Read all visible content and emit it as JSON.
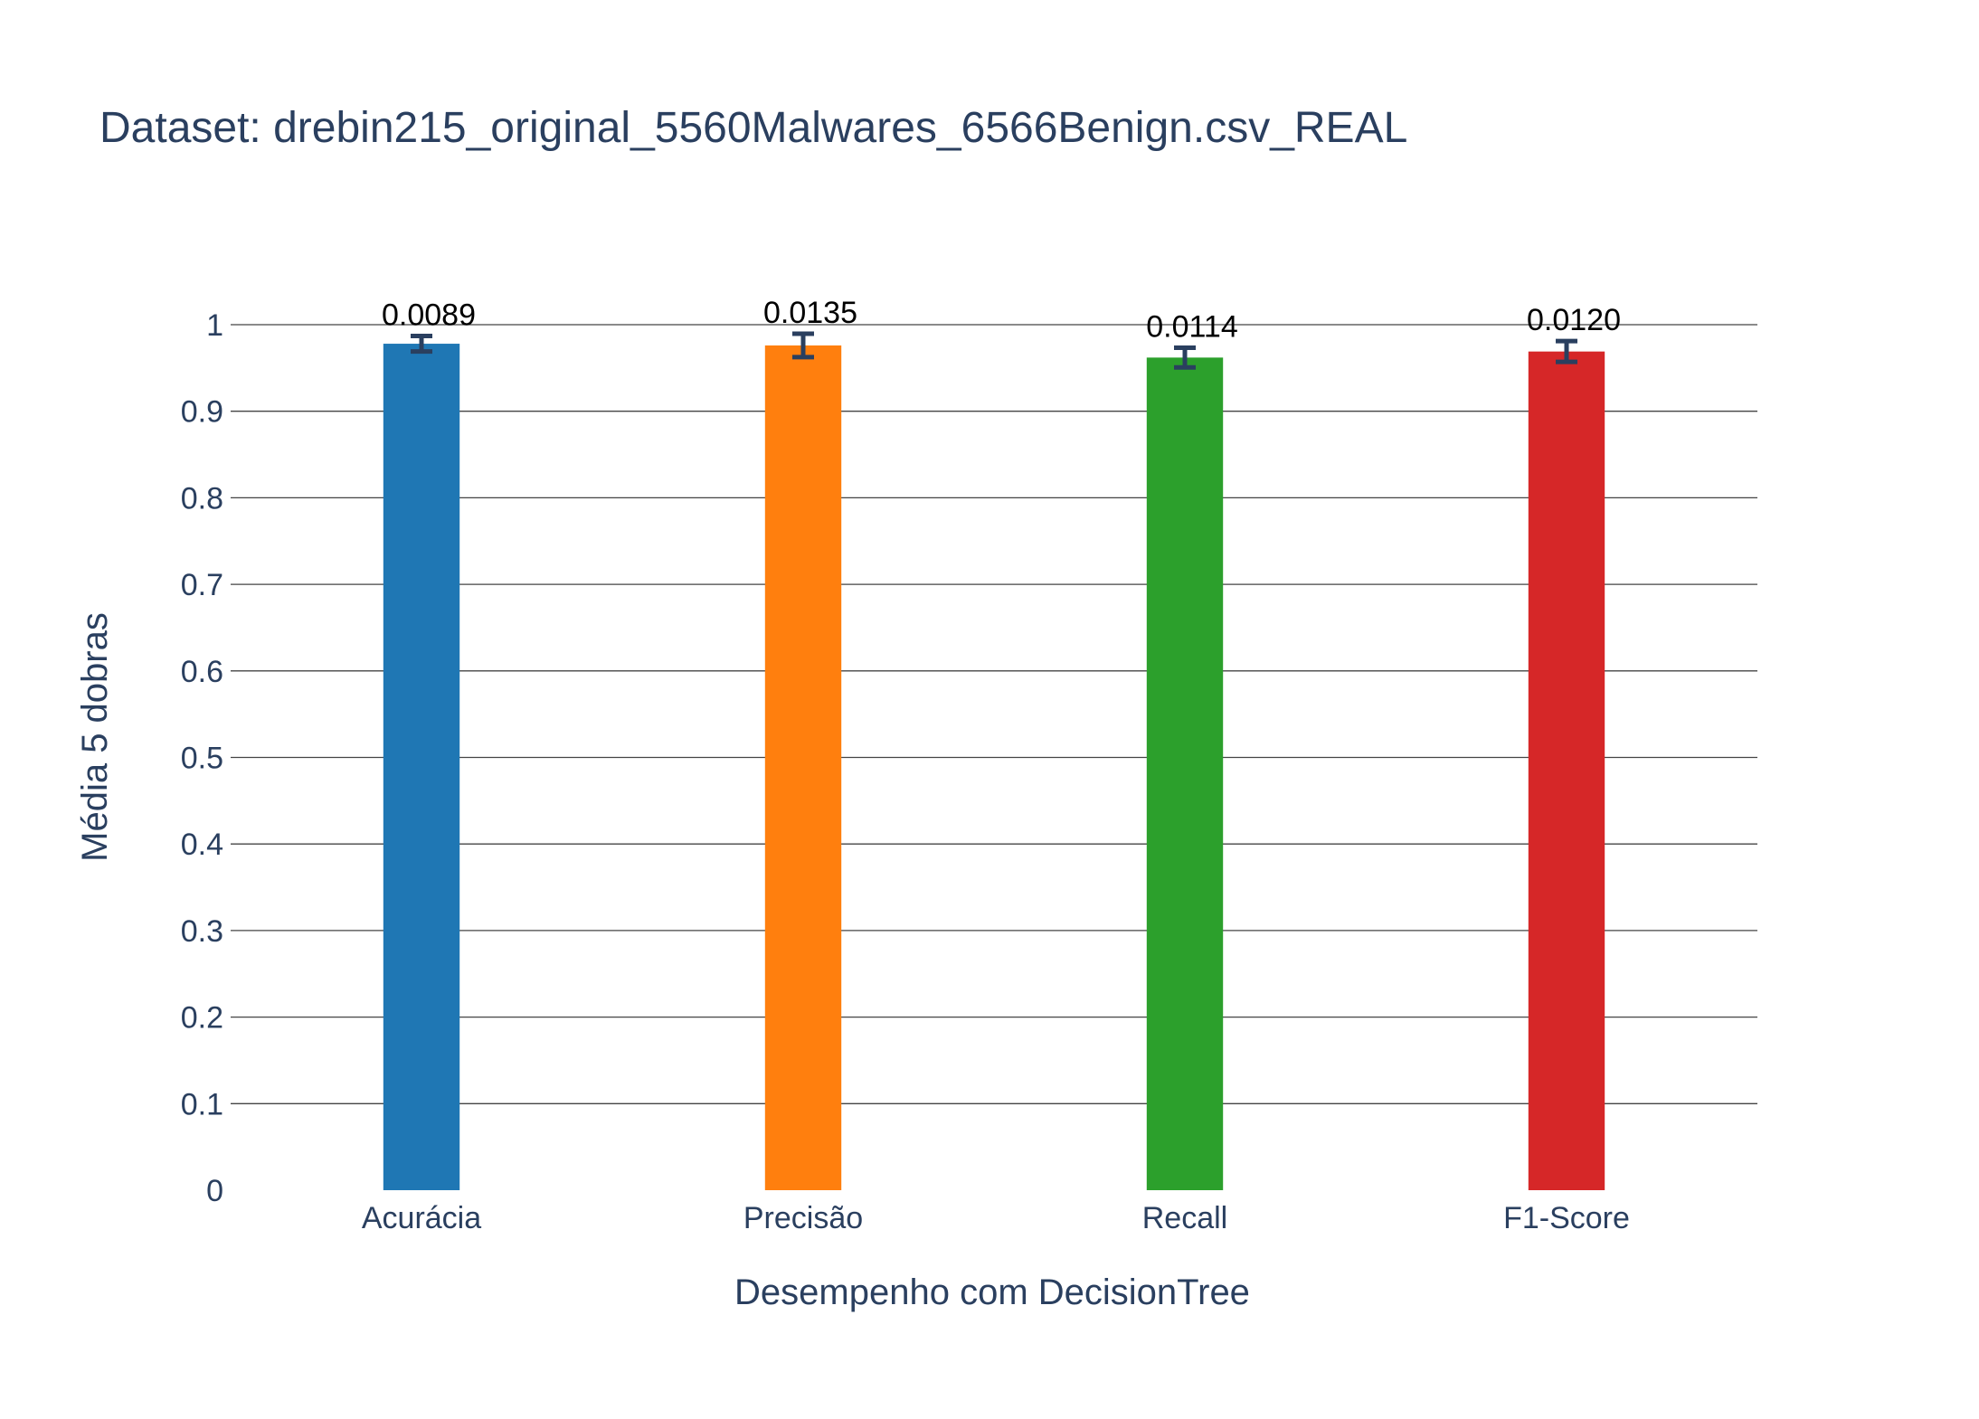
{
  "chart_data": {
    "type": "bar",
    "title": "Dataset: drebin215_original_5560Malwares_6566Benign.csv_REAL",
    "xlabel": "Desempenho com DecisionTree",
    "ylabel": "Média 5 dobras",
    "categories": [
      "Acurácia",
      "Precisão",
      "Recall",
      "F1-Score"
    ],
    "values": [
      0.978,
      0.976,
      0.962,
      0.969
    ],
    "errors": [
      0.0089,
      0.0135,
      0.0114,
      0.012
    ],
    "bar_labels": [
      "0.0089",
      "0.0135",
      "0.0114",
      "0.0120"
    ],
    "colors": [
      "#1f77b4",
      "#ff7f0e",
      "#2ca02c",
      "#d62728"
    ],
    "ylim": [
      0,
      1
    ],
    "yticks": [
      0,
      0.1,
      0.2,
      0.3,
      0.4,
      0.5,
      0.6,
      0.7,
      0.8,
      0.9,
      1
    ],
    "ytick_labels": [
      "0",
      "0.1",
      "0.2",
      "0.3",
      "0.4",
      "0.5",
      "0.6",
      "0.7",
      "0.8",
      "0.9",
      "1"
    ],
    "grid": true,
    "legend": "none"
  }
}
